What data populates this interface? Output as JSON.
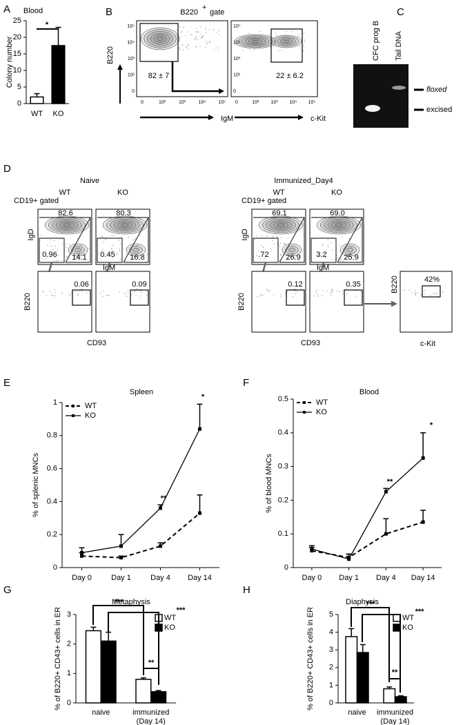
{
  "chart_data": [
    {
      "type": "bar",
      "panel": "A",
      "title": "Blood",
      "ylabel": "Colony number",
      "categories": [
        "WT",
        "KO"
      ],
      "values": [
        2,
        17.5
      ],
      "errors": [
        1,
        5.5
      ],
      "colors": [
        "#ffffff",
        "#000000"
      ],
      "ylim": [
        0,
        25
      ],
      "yticks": [
        0,
        5,
        10,
        15,
        20,
        25
      ],
      "annotations": [
        {
          "text": "*"
        }
      ]
    },
    {
      "type": "line",
      "panel": "E",
      "title": "Spleen",
      "ylabel": "% of splenic MNCs",
      "categories": [
        "Day 0",
        "Day 1",
        "Day 4",
        "Day 14"
      ],
      "series": [
        {
          "name": "WT",
          "color": "#000000",
          "dashed": true,
          "values": [
            0.07,
            0.06,
            0.13,
            0.33
          ],
          "errors": [
            0.02,
            0.01,
            0.02,
            0.11
          ]
        },
        {
          "name": "KO",
          "color": "#000000",
          "dashed": false,
          "values": [
            0.09,
            0.13,
            0.36,
            0.84
          ],
          "errors": [
            0.03,
            0.07,
            0.02,
            0.15
          ]
        }
      ],
      "ylim": [
        0,
        1
      ],
      "yticks": [
        0,
        0.2,
        0.4,
        0.6,
        0.8,
        1
      ],
      "legend": "upper left",
      "annotations": [
        {
          "text": "**"
        },
        {
          "text": "*"
        }
      ]
    },
    {
      "type": "line",
      "panel": "F",
      "title": "Blood",
      "ylabel": "% of blood MNCs",
      "categories": [
        "Day 0",
        "Day 1",
        "Day 4",
        "Day 14"
      ],
      "series": [
        {
          "name": "WT",
          "color": "#000000",
          "dashed": true,
          "values": [
            0.05,
            0.03,
            0.1,
            0.135
          ],
          "errors": [
            0.01,
            0.01,
            0.045,
            0.035
          ]
        },
        {
          "name": "KO",
          "color": "#000000",
          "dashed": false,
          "values": [
            0.055,
            0.025,
            0.225,
            0.325
          ],
          "errors": [
            0.01,
            0.015,
            0.01,
            0.075
          ]
        }
      ],
      "ylim": [
        0,
        0.5
      ],
      "yticks": [
        0,
        0.1,
        0.2,
        0.3,
        0.4,
        0.5
      ],
      "legend": "upper left",
      "annotations": [
        {
          "text": "**"
        },
        {
          "text": "*"
        }
      ]
    },
    {
      "type": "bar",
      "panel": "G",
      "title": "Metaphysis",
      "ylabel": "% of B220+ CD43+ cells in ER",
      "categories": [
        [
          "naive"
        ],
        [
          "immunized",
          "(Day 14)"
        ]
      ],
      "series": [
        {
          "name": "WT",
          "color": "#ffffff",
          "values": [
            2.45,
            0.8
          ],
          "errors": [
            0.12,
            0.05
          ]
        },
        {
          "name": "KO",
          "color": "#000000",
          "values": [
            2.1,
            0.38
          ],
          "errors": [
            0.3,
            0.04
          ]
        }
      ],
      "ylim": [
        0,
        3
      ],
      "yticks": [
        0,
        1,
        2,
        3
      ],
      "legend": "upper right",
      "annotations": [
        {
          "text": "***"
        },
        {
          "text": "***"
        },
        {
          "text": "**"
        }
      ]
    },
    {
      "type": "bar",
      "panel": "H",
      "title": "Diaphysis",
      "ylabel": "% of B220+ CD43+ cells in ER",
      "categories": [
        [
          "naive"
        ],
        [
          "immunized",
          "(Day 14)"
        ]
      ],
      "series": [
        {
          "name": "WT",
          "color": "#ffffff",
          "values": [
            3.75,
            0.8
          ],
          "errors": [
            0.45,
            0.1
          ]
        },
        {
          "name": "KO",
          "color": "#000000",
          "values": [
            2.85,
            0.35
          ],
          "errors": [
            0.45,
            0.05
          ]
        }
      ],
      "ylim": [
        0,
        5
      ],
      "yticks": [
        0,
        1,
        2,
        3,
        4,
        5
      ],
      "legend": "upper right",
      "annotations": [
        {
          "text": "***"
        },
        {
          "text": "***"
        },
        {
          "text": "**"
        }
      ]
    }
  ],
  "panel_b": {
    "label": "B",
    "title": "B220",
    "title_superscript": "+",
    "title_suffix": "gate",
    "y_axis": "B220",
    "xticks": [
      "0",
      "10²",
      "10³",
      "10⁴",
      "10⁵"
    ],
    "yticks": [
      "10⁵",
      "10⁴",
      "10³",
      "10²",
      "0"
    ],
    "plots": [
      {
        "x_axis": "IgM",
        "gate": "82 ± 7"
      },
      {
        "x_axis": "c-Kit",
        "gate": "22 ± 6.2"
      }
    ]
  },
  "panel_c": {
    "label": "C",
    "lanes": [
      "CFC prog B",
      "Tail DNA"
    ],
    "bands": [
      "floxed",
      "excised"
    ]
  },
  "panel_d": {
    "label": "D",
    "groups": [
      {
        "title": "Naive",
        "gated": "CD19+ gated",
        "top_y": "IgD",
        "top_x": "IgM",
        "bottom_y": "B220",
        "bottom_x": "CD93",
        "columns": [
          {
            "name": "WT",
            "igd_high": "82.6",
            "igm_high": "14.1",
            "transitional": "0.96",
            "cd93": "0.06"
          },
          {
            "name": "KO",
            "igd_high": "80.3",
            "igm_high": "16.8",
            "transitional": "0.45",
            "cd93": "0.09"
          }
        ]
      },
      {
        "title": "Immunized_Day4",
        "gated": "CD19+ gated",
        "top_y": "IgD",
        "top_x": "IgM",
        "bottom_y": "B220",
        "bottom_x": "CD93",
        "columns": [
          {
            "name": "WT",
            "igd_high": "69.1",
            "igm_high": "26.9",
            "transitional": ".72",
            "cd93": "0.12"
          },
          {
            "name": "KO",
            "igd_high": "69.0",
            "igm_high": "25.9",
            "transitional": "3.2",
            "cd93": "0.35"
          }
        ],
        "extra": {
          "y_axis": "B220",
          "x_axis": "c-Kit",
          "value": "42%"
        }
      }
    ]
  }
}
